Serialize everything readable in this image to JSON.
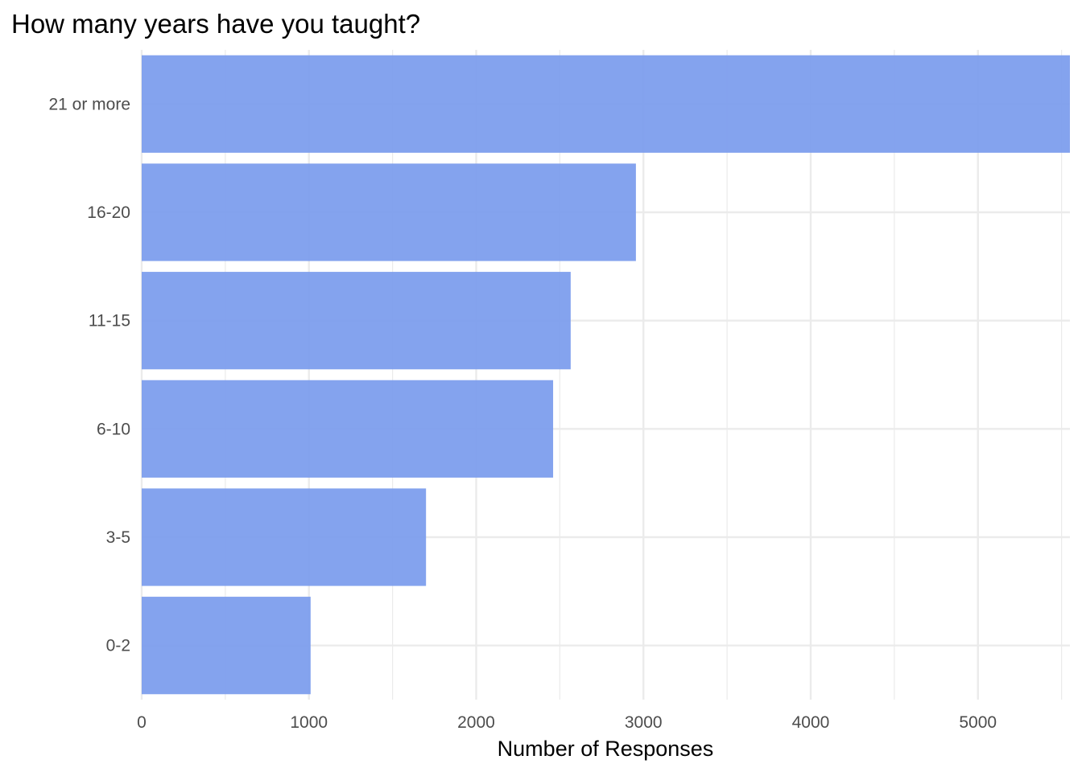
{
  "chart_data": {
    "type": "bar",
    "orientation": "horizontal",
    "title": "How many years have you taught?",
    "xlabel": "Number of Responses",
    "ylabel": "",
    "categories": [
      "21 or more",
      "16-20",
      "11-15",
      "6-10",
      "3-5",
      "0-2"
    ],
    "values": [
      5550,
      2955,
      2565,
      2460,
      1700,
      1010
    ],
    "xlim": [
      0,
      5550
    ],
    "x_ticks": [
      0,
      1000,
      2000,
      3000,
      4000,
      5000
    ],
    "x_tick_labels": [
      "0",
      "1000",
      "2000",
      "3000",
      "4000",
      "5000"
    ],
    "grid": true,
    "bar_color": "#7b9ced",
    "gridline_color": "#ebebeb"
  }
}
